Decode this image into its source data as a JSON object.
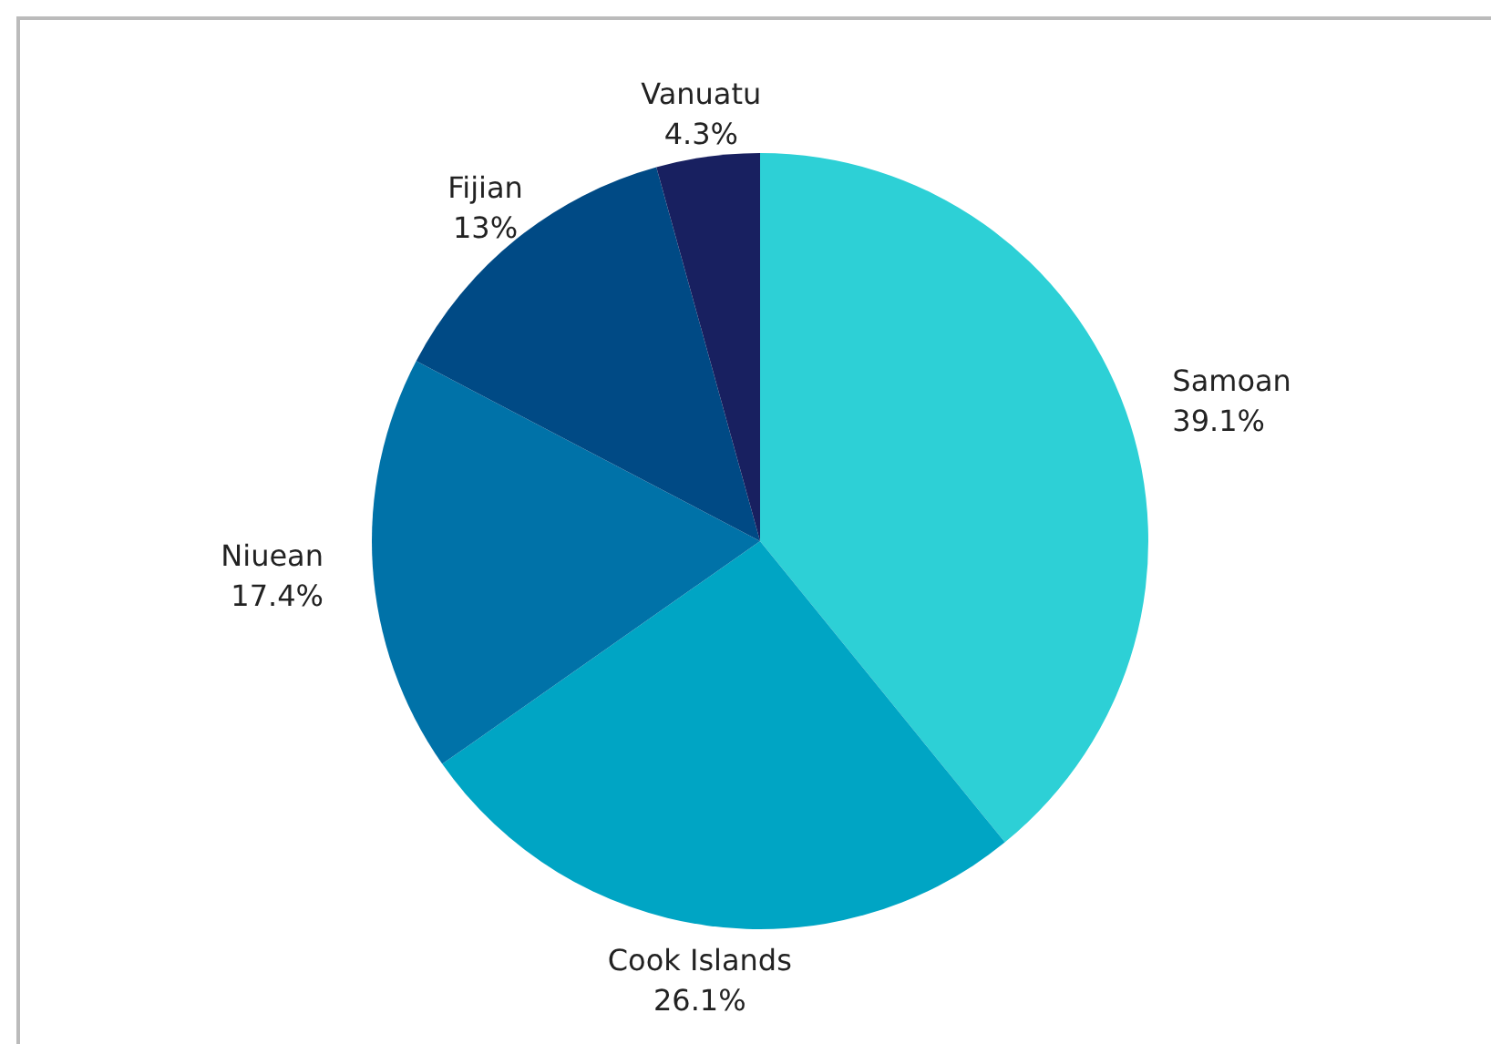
{
  "chart_data": {
    "type": "pie",
    "categories": [
      "Samoan",
      "Cook Islands",
      "Niuean",
      "Fijian",
      "Vanuatu"
    ],
    "values": [
      39.1,
      26.1,
      17.4,
      13,
      4.3
    ],
    "value_labels": [
      "39.1%",
      "26.1%",
      "17.4%",
      "13%",
      "4.3%"
    ],
    "colors": [
      "#2dd0d6",
      "#00a5c4",
      "#0072a8",
      "#004a85",
      "#182060"
    ]
  }
}
